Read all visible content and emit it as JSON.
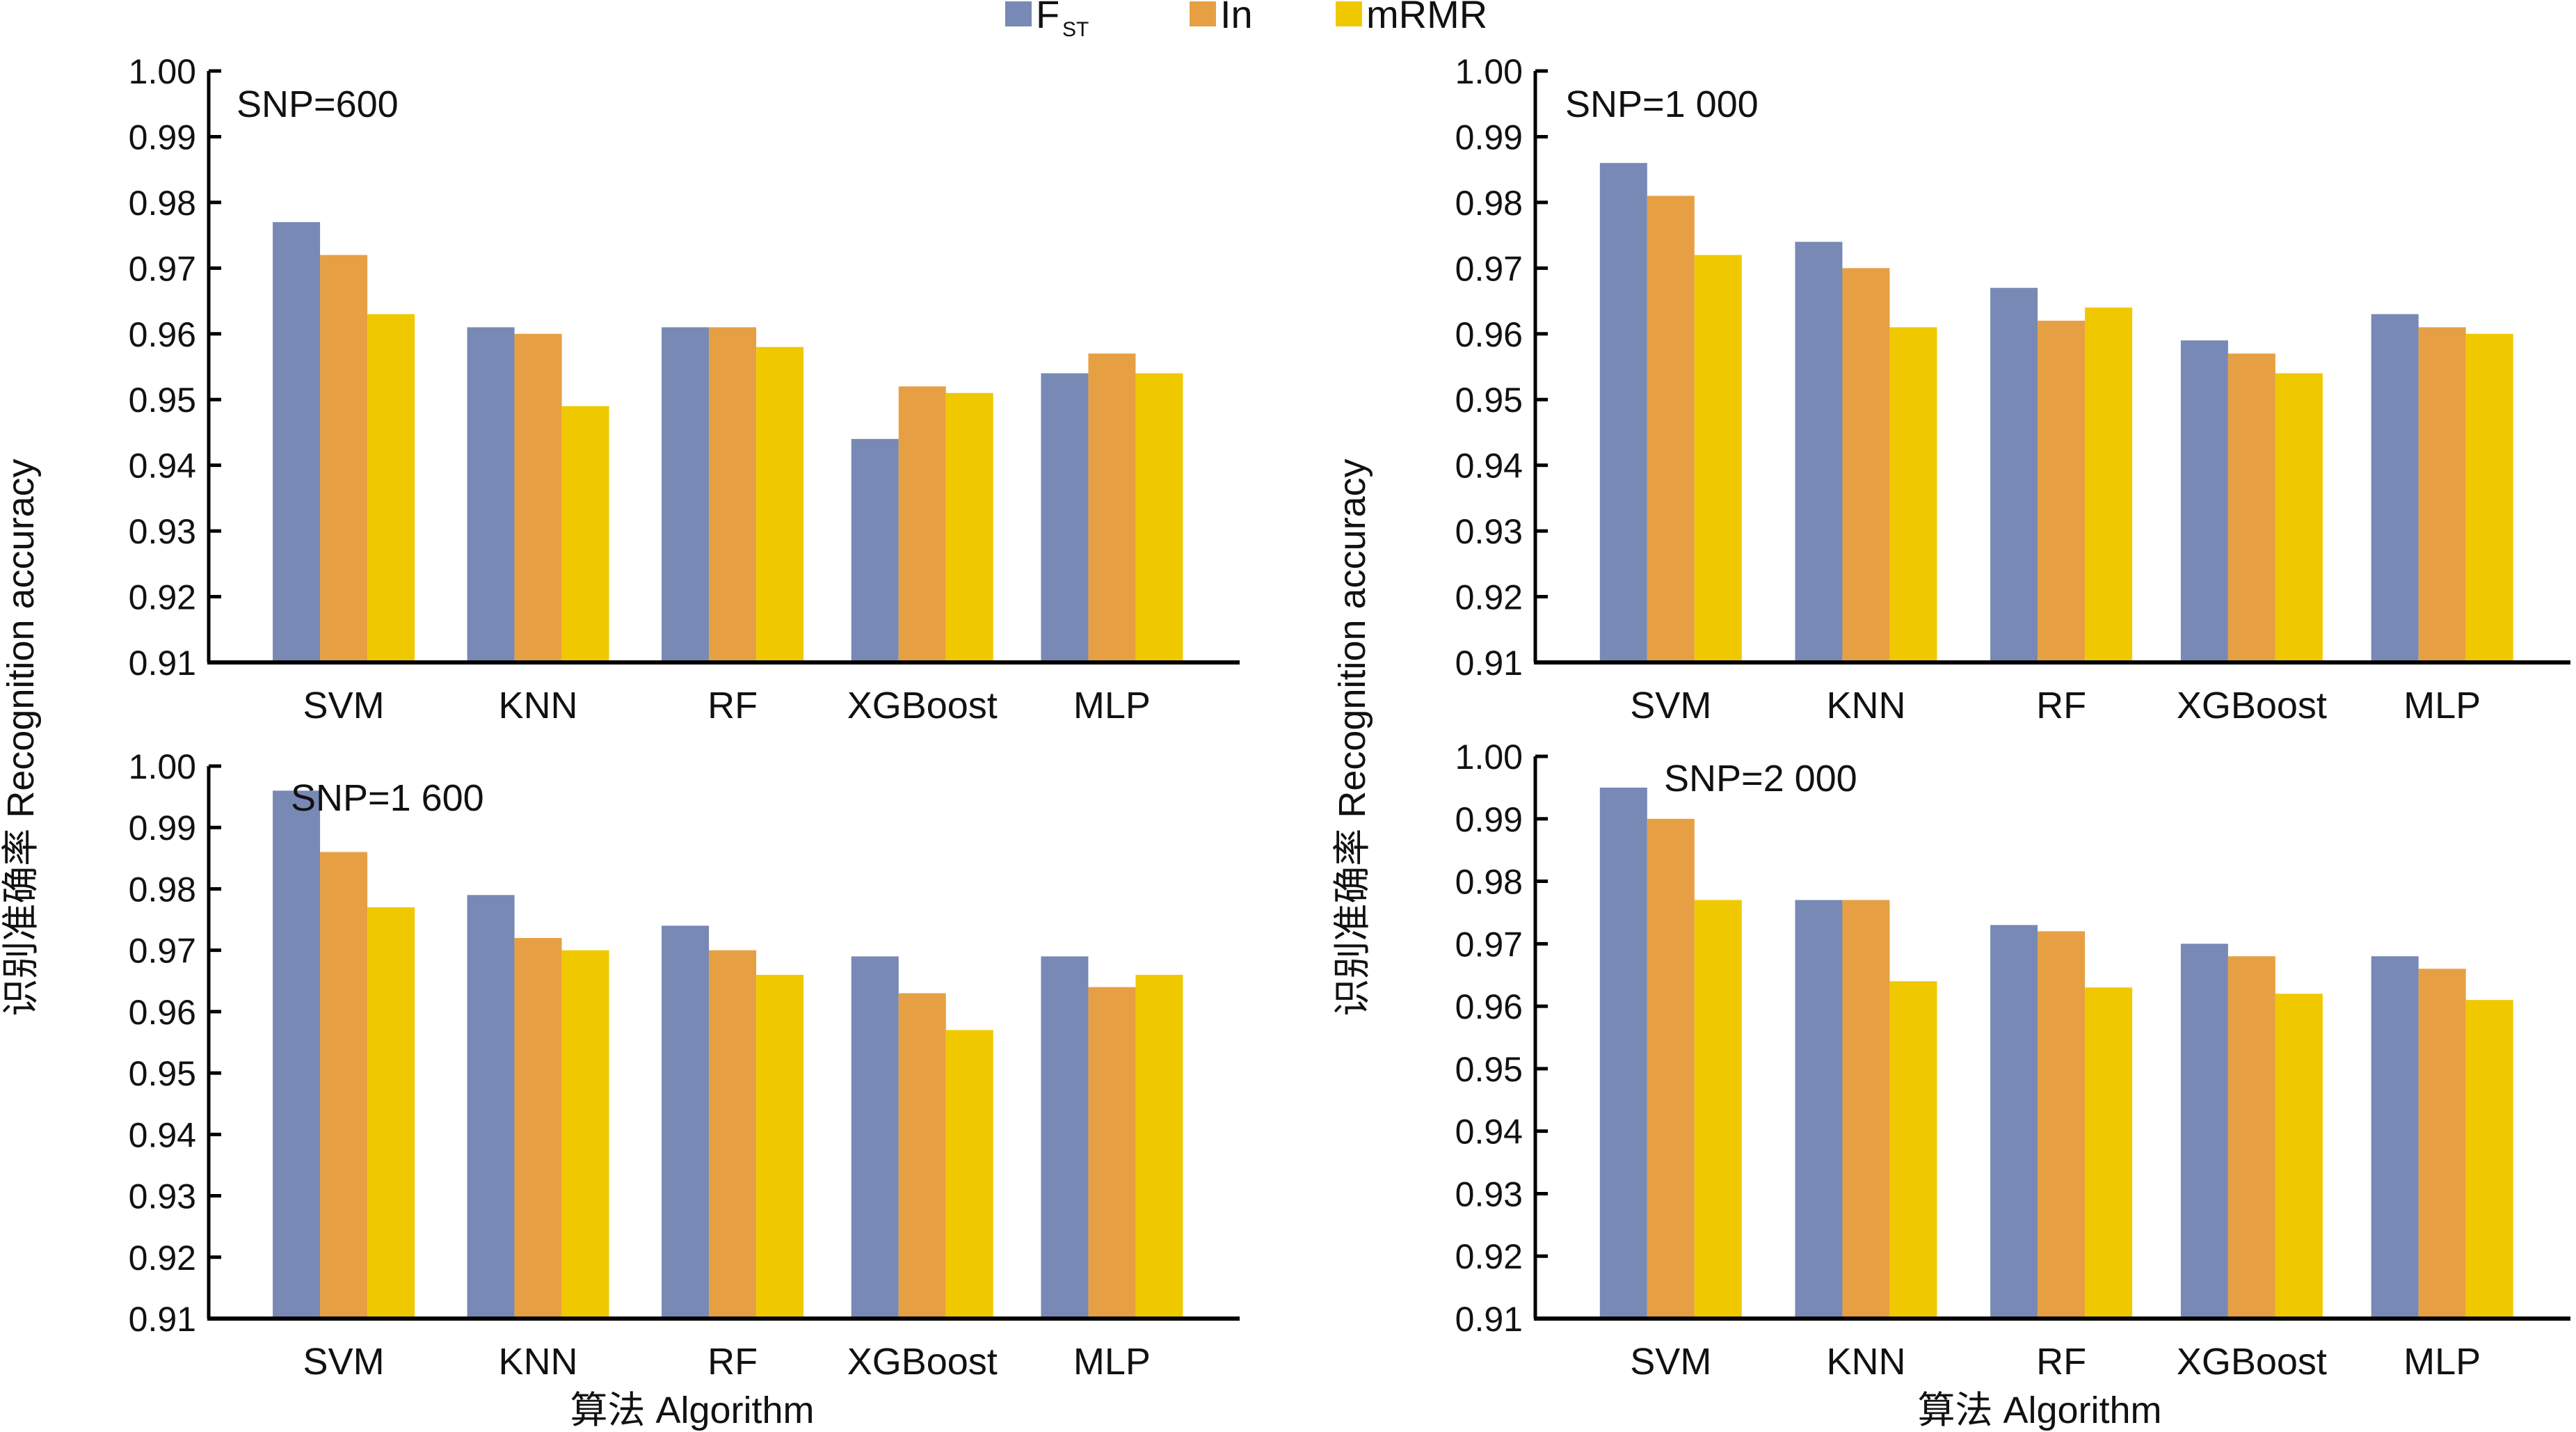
{
  "legend": [
    {
      "name": "F",
      "sub": "ST",
      "color": "#7789B4"
    },
    {
      "name": "In",
      "sub": "",
      "color": "#E6A043"
    },
    {
      "name": "mRMR",
      "sub": "",
      "color": "#F0C800"
    }
  ],
  "y_axis_title": "识别准确率 Recognition accuracy",
  "x_axis_title": "算法 Algorithm",
  "chart_data": [
    {
      "type": "bar",
      "title": "SNP=600",
      "categories": [
        "SVM",
        "KNN",
        "RF",
        "XGBoost",
        "MLP"
      ],
      "series": [
        {
          "name": "FST",
          "values": [
            0.977,
            0.961,
            0.961,
            0.944,
            0.954
          ]
        },
        {
          "name": "In",
          "values": [
            0.972,
            0.96,
            0.961,
            0.952,
            0.957
          ]
        },
        {
          "name": "mRMR",
          "values": [
            0.963,
            0.949,
            0.958,
            0.951,
            0.954
          ]
        }
      ],
      "ylim": [
        0.91,
        1.0
      ],
      "yticks": [
        "0.91",
        "0.92",
        "0.93",
        "0.94",
        "0.95",
        "0.96",
        "0.97",
        "0.98",
        "0.99",
        "1.00"
      ],
      "xlabel": "",
      "ylabel": "识别准确率 Recognition accuracy",
      "legend": "top-center",
      "grid": false
    },
    {
      "type": "bar",
      "title": "SNP=1 000",
      "categories": [
        "SVM",
        "KNN",
        "RF",
        "XGBoost",
        "MLP"
      ],
      "series": [
        {
          "name": "FST",
          "values": [
            0.986,
            0.974,
            0.967,
            0.959,
            0.963
          ]
        },
        {
          "name": "In",
          "values": [
            0.981,
            0.97,
            0.962,
            0.957,
            0.961
          ]
        },
        {
          "name": "mRMR",
          "values": [
            0.972,
            0.961,
            0.964,
            0.954,
            0.96
          ]
        }
      ],
      "ylim": [
        0.91,
        1.0
      ],
      "yticks": [
        "0.91",
        "0.92",
        "0.93",
        "0.94",
        "0.95",
        "0.96",
        "0.97",
        "0.98",
        "0.99",
        "1.00"
      ],
      "xlabel": "",
      "ylabel": "识别准确率 Recognition accuracy",
      "legend": "top-center",
      "grid": false
    },
    {
      "type": "bar",
      "title": "SNP=1 600",
      "categories": [
        "SVM",
        "KNN",
        "RF",
        "XGBoost",
        "MLP"
      ],
      "series": [
        {
          "name": "FST",
          "values": [
            0.996,
            0.979,
            0.974,
            0.969,
            0.969
          ]
        },
        {
          "name": "In",
          "values": [
            0.986,
            0.972,
            0.97,
            0.963,
            0.964
          ]
        },
        {
          "name": "mRMR",
          "values": [
            0.977,
            0.97,
            0.966,
            0.957,
            0.966
          ]
        }
      ],
      "ylim": [
        0.91,
        1.0
      ],
      "yticks": [
        "0.91",
        "0.92",
        "0.93",
        "0.94",
        "0.95",
        "0.96",
        "0.97",
        "0.98",
        "0.99",
        "1.00"
      ],
      "xlabel": "算法 Algorithm",
      "ylabel": "识别准确率 Recognition accuracy",
      "legend": "top-center",
      "grid": false
    },
    {
      "type": "bar",
      "title": "SNP=2 000",
      "categories": [
        "SVM",
        "KNN",
        "RF",
        "XGBoost",
        "MLP"
      ],
      "series": [
        {
          "name": "FST",
          "values": [
            0.995,
            0.977,
            0.973,
            0.97,
            0.968
          ]
        },
        {
          "name": "In",
          "values": [
            0.99,
            0.977,
            0.972,
            0.968,
            0.966
          ]
        },
        {
          "name": "mRMR",
          "values": [
            0.977,
            0.964,
            0.963,
            0.962,
            0.961
          ]
        }
      ],
      "ylim": [
        0.91,
        1.0
      ],
      "yticks": [
        "0.91",
        "0.92",
        "0.93",
        "0.94",
        "0.95",
        "0.96",
        "0.97",
        "0.98",
        "0.99",
        "1.00"
      ],
      "xlabel": "算法 Algorithm",
      "ylabel": "识别准确率 Recognition accuracy",
      "legend": "top-center",
      "grid": false
    }
  ]
}
